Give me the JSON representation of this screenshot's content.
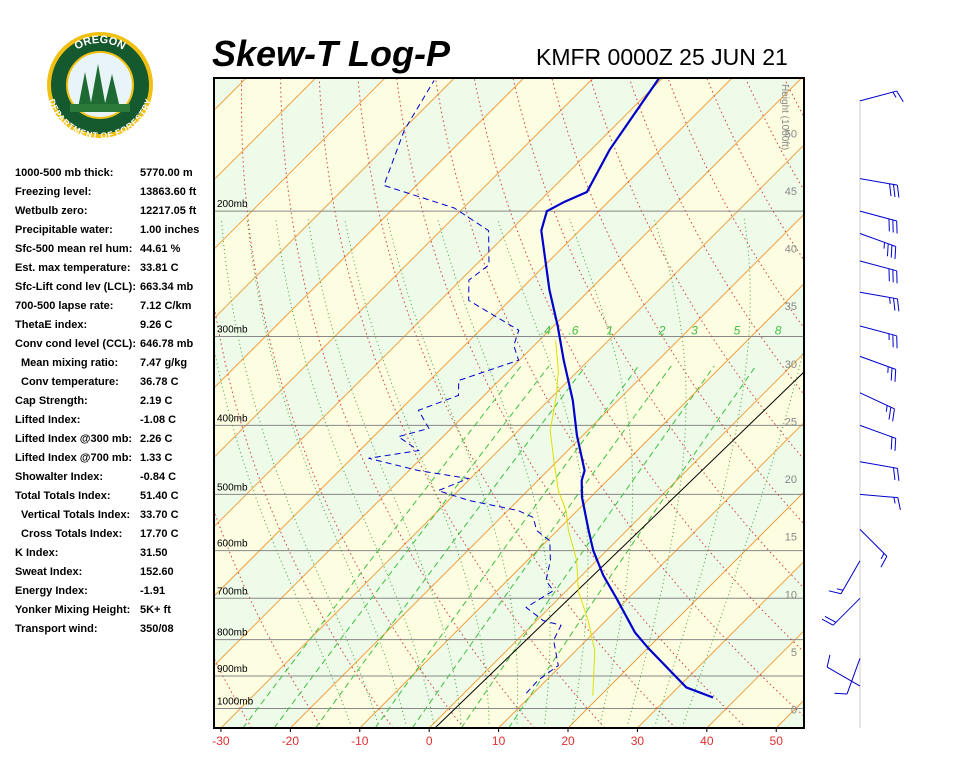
{
  "logo": {
    "top": "OREGON",
    "bottom": "DEPARTMENT OF FORESTRY"
  },
  "indices": [
    [
      "1000-500 mb thick:",
      "5770.00 m"
    ],
    [
      "Freezing level:",
      "13863.60 ft"
    ],
    [
      "Wetbulb zero:",
      "12217.05 ft"
    ],
    [
      "Precipitable water:",
      "1.00 inches"
    ],
    [
      "Sfc-500 mean rel hum:",
      "44.61 %"
    ],
    [
      "Est. max temperature:",
      "33.81 C"
    ],
    [
      "Sfc-Lift cond lev (LCL):",
      "663.34 mb"
    ],
    [
      "700-500 lapse rate:",
      "7.12 C/km"
    ],
    [
      "ThetaE index:",
      "9.26 C"
    ],
    [
      "Conv cond level (CCL):",
      "646.78 mb"
    ],
    [
      "Mean mixing ratio:",
      "7.47 g/kg"
    ],
    [
      "Conv temperature:",
      "36.78 C"
    ],
    [
      "Cap Strength:",
      "2.19 C"
    ],
    [
      "Lifted Index:",
      "-1.08 C"
    ],
    [
      "Lifted Index @300 mb:",
      "2.26 C"
    ],
    [
      "Lifted Index @700 mb:",
      "1.33 C"
    ],
    [
      "Showalter Index:",
      "-0.84 C"
    ],
    [
      "Total Totals Index:",
      "51.40 C"
    ],
    [
      "Vertical Totals Index:",
      "33.70 C"
    ],
    [
      "Cross Totals Index:",
      "17.70 C"
    ],
    [
      "K Index:",
      "31.50"
    ],
    [
      "Sweat Index:",
      "152.60"
    ],
    [
      "Energy Index:",
      "-1.91"
    ],
    [
      "Yonker Mixing Height:",
      "5K+ ft"
    ],
    [
      "Transport wind:",
      "350/08"
    ]
  ],
  "chart_data": {
    "type": "skew-t",
    "title": "Skew-T Log-P",
    "subtitle": "KMFR 0000Z 25 JUN 21",
    "xlim": [
      -31,
      54
    ],
    "xticks": [
      -30,
      -20,
      -10,
      0,
      10,
      20,
      30,
      40,
      50
    ],
    "ylim": [
      1065,
      130
    ],
    "log_y": true,
    "yticks": [
      {
        "value": 200,
        "label": "200mb"
      },
      {
        "value": 300,
        "label": "300mb"
      },
      {
        "value": 400,
        "label": "400mb"
      },
      {
        "value": 500,
        "label": "500mb"
      },
      {
        "value": 600,
        "label": "600mb"
      },
      {
        "value": 700,
        "label": "700mb"
      },
      {
        "value": 800,
        "label": "800mb"
      },
      {
        "value": 900,
        "label": "900mb"
      },
      {
        "value": 1000,
        "label": "1000mb"
      }
    ],
    "y2_label": "Height (1000ft)",
    "y2lim": [
      -1.6,
      54.8
    ],
    "y2ticks": [
      0,
      5,
      10,
      15,
      20,
      25,
      30,
      35,
      40,
      45,
      50
    ],
    "mixing_ratio_ticks": [
      {
        "value": 0.4,
        "label": ".4"
      },
      {
        "value": 0.6,
        "label": ".6"
      },
      1,
      2,
      3,
      5,
      8
    ],
    "series": [
      {
        "color": "#0000cc",
        "line_style": "solid",
        "pressure": [
          965,
          934,
          823,
          782,
          700,
          650,
          600,
          562,
          505,
          478,
          463,
          413,
          369,
          324,
          290,
          258,
          213,
          200,
          194,
          188,
          164,
          130
        ],
        "values": [
          36.5,
          31.2,
          20.1,
          15.9,
          8.3,
          3.1,
          -1.9,
          -5.5,
          -11.2,
          -13.7,
          -14.7,
          -20.9,
          -26.5,
          -33.6,
          -39.4,
          -45.8,
          -55.5,
          -57.5,
          -56.3,
          -54.5,
          -57.3,
          -60.5
        ]
      },
      {
        "color": "#0000cc",
        "line_style": "dashed",
        "pressure": [
          952,
          913,
          870,
          802,
          764,
          752,
          721,
          683,
          661,
          619,
          581,
          562,
          539,
          527,
          510,
          494,
          475,
          463,
          445,
          434,
          415,
          404,
          381,
          363,
          346,
          324,
          309,
          294,
          267,
          250,
          238,
          213,
          198,
          184,
          154,
          131
        ],
        "values": [
          9.0,
          8.8,
          9.6,
          5.3,
          4.2,
          0.9,
          -3.4,
          -1.9,
          -4.4,
          -6.7,
          -9.6,
          -13.0,
          -15.3,
          -18.5,
          -27.1,
          -32.9,
          -30.3,
          -38.6,
          -47.6,
          -41.5,
          -46.4,
          -43.2,
          -47.3,
          -43.7,
          -45.8,
          -40.1,
          -42.9,
          -44.4,
          -55.9,
          -58.8,
          -58.1,
          -63.1,
          -71.3,
          -84.7,
          -89.7,
          -92.6
        ]
      },
      {
        "color": "#e0e000",
        "line_style": "solid",
        "pressure": [
          959,
          829,
          752,
          683,
          619,
          562,
          527,
          494,
          448,
          407,
          363,
          335,
          304
        ],
        "values": [
          18.9,
          12.7,
          7.4,
          1.7,
          -2.9,
          -8.4,
          -11.6,
          -15.6,
          -20.6,
          -25.4,
          -29.6,
          -32.9,
          -37.6
        ]
      }
    ],
    "winds": [
      {
        "p": 140,
        "dir": 75,
        "spd": 15
      },
      {
        "p": 180,
        "dir": 100,
        "spd": 30
      },
      {
        "p": 200,
        "dir": 105,
        "spd": 30
      },
      {
        "p": 215,
        "dir": 110,
        "spd": 35
      },
      {
        "p": 235,
        "dir": 105,
        "spd": 30
      },
      {
        "p": 260,
        "dir": 100,
        "spd": 25
      },
      {
        "p": 290,
        "dir": 105,
        "spd": 25
      },
      {
        "p": 320,
        "dir": 110,
        "spd": 25
      },
      {
        "p": 360,
        "dir": 115,
        "spd": 25
      },
      {
        "p": 400,
        "dir": 110,
        "spd": 20
      },
      {
        "p": 450,
        "dir": 100,
        "spd": 20
      },
      {
        "p": 500,
        "dir": 95,
        "spd": 15
      },
      {
        "p": 560,
        "dir": 135,
        "spd": 15
      },
      {
        "p": 620,
        "dir": 210,
        "spd": 15
      },
      {
        "p": 700,
        "dir": 225,
        "spd": 20
      },
      {
        "p": 850,
        "dir": 200,
        "spd": 10
      },
      {
        "p": 930,
        "dir": 300,
        "spd": 10
      }
    ]
  }
}
